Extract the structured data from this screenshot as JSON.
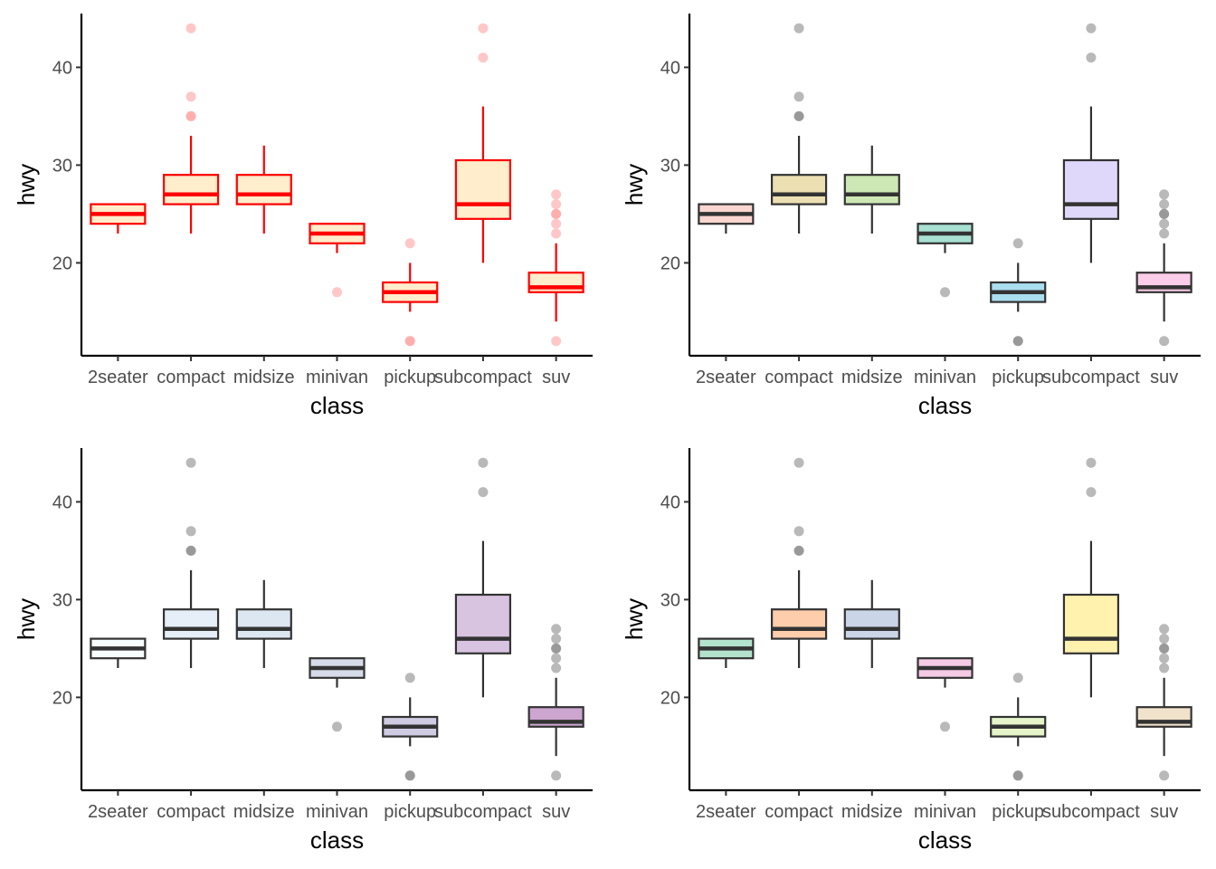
{
  "chart_data": [
    {
      "type": "boxplot",
      "xlabel": "class",
      "ylabel": "hwy",
      "ylim": [
        10.5,
        45.5
      ],
      "yticks": [
        20,
        30,
        40
      ],
      "grid": false,
      "style": {
        "stroke": "#ff0000",
        "fill": "#ffedcc",
        "outlier": "#ff9999"
      },
      "categories": [
        "2seater",
        "compact",
        "midsize",
        "minivan",
        "pickup",
        "subcompact",
        "suv"
      ],
      "boxes": [
        {
          "min": 23,
          "q1": 24,
          "median": 25,
          "q3": 26,
          "max": 26,
          "outliers": []
        },
        {
          "min": 23,
          "q1": 26,
          "median": 27,
          "q3": 29,
          "max": 33,
          "outliers": [
            35,
            35,
            37,
            44
          ]
        },
        {
          "min": 23,
          "q1": 26,
          "median": 27,
          "q3": 29,
          "max": 32,
          "outliers": []
        },
        {
          "min": 21,
          "q1": 22,
          "median": 23,
          "q3": 24,
          "max": 24,
          "outliers": [
            17
          ]
        },
        {
          "min": 15,
          "q1": 16,
          "median": 17,
          "q3": 18,
          "max": 20,
          "outliers": [
            12,
            12,
            22
          ]
        },
        {
          "min": 20,
          "q1": 24.5,
          "median": 26,
          "q3": 30.5,
          "max": 36,
          "outliers": [
            41,
            44
          ]
        },
        {
          "min": 14,
          "q1": 17,
          "median": 17.5,
          "q3": 19,
          "max": 22,
          "outliers": [
            12,
            23,
            24,
            25,
            25,
            26,
            27
          ]
        }
      ]
    },
    {
      "type": "boxplot",
      "xlabel": "class",
      "ylabel": "hwy",
      "ylim": [
        10.5,
        45.5
      ],
      "yticks": [
        20,
        30,
        40
      ],
      "grid": false,
      "style": {
        "stroke": "#333333",
        "outlier": "#808080"
      },
      "box_fills": [
        "#fbd5d0",
        "#ece0b2",
        "#cde8b4",
        "#a8e0d2",
        "#aadff0",
        "#e0d8fa",
        "#fccde8"
      ],
      "categories": [
        "2seater",
        "compact",
        "midsize",
        "minivan",
        "pickup",
        "subcompact",
        "suv"
      ],
      "boxes": [
        {
          "min": 23,
          "q1": 24,
          "median": 25,
          "q3": 26,
          "max": 26,
          "outliers": []
        },
        {
          "min": 23,
          "q1": 26,
          "median": 27,
          "q3": 29,
          "max": 33,
          "outliers": [
            35,
            35,
            37,
            44
          ]
        },
        {
          "min": 23,
          "q1": 26,
          "median": 27,
          "q3": 29,
          "max": 32,
          "outliers": []
        },
        {
          "min": 21,
          "q1": 22,
          "median": 23,
          "q3": 24,
          "max": 24,
          "outliers": [
            17
          ]
        },
        {
          "min": 15,
          "q1": 16,
          "median": 17,
          "q3": 18,
          "max": 20,
          "outliers": [
            12,
            12,
            22
          ]
        },
        {
          "min": 20,
          "q1": 24.5,
          "median": 26,
          "q3": 30.5,
          "max": 36,
          "outliers": [
            41,
            44
          ]
        },
        {
          "min": 14,
          "q1": 17,
          "median": 17.5,
          "q3": 19,
          "max": 22,
          "outliers": [
            12,
            23,
            24,
            25,
            25,
            26,
            27
          ]
        }
      ]
    },
    {
      "type": "boxplot",
      "xlabel": "class",
      "ylabel": "hwy",
      "ylim": [
        10.5,
        45.5
      ],
      "yticks": [
        20,
        30,
        40
      ],
      "grid": false,
      "style": {
        "stroke": "#333333",
        "outlier": "#808080"
      },
      "box_fills": [
        "#f7fcfd",
        "#e6eef7",
        "#dde7f2",
        "#d6dbe9",
        "#cfcbe2",
        "#d8c3e0",
        "#cca6cf"
      ],
      "categories": [
        "2seater",
        "compact",
        "midsize",
        "minivan",
        "pickup",
        "subcompact",
        "suv"
      ],
      "boxes": [
        {
          "min": 23,
          "q1": 24,
          "median": 25,
          "q3": 26,
          "max": 26,
          "outliers": []
        },
        {
          "min": 23,
          "q1": 26,
          "median": 27,
          "q3": 29,
          "max": 33,
          "outliers": [
            35,
            35,
            37,
            44
          ]
        },
        {
          "min": 23,
          "q1": 26,
          "median": 27,
          "q3": 29,
          "max": 32,
          "outliers": []
        },
        {
          "min": 21,
          "q1": 22,
          "median": 23,
          "q3": 24,
          "max": 24,
          "outliers": [
            17
          ]
        },
        {
          "min": 15,
          "q1": 16,
          "median": 17,
          "q3": 18,
          "max": 20,
          "outliers": [
            12,
            12,
            22
          ]
        },
        {
          "min": 20,
          "q1": 24.5,
          "median": 26,
          "q3": 30.5,
          "max": 36,
          "outliers": [
            41,
            44
          ]
        },
        {
          "min": 14,
          "q1": 17,
          "median": 17.5,
          "q3": 19,
          "max": 22,
          "outliers": [
            12,
            23,
            24,
            25,
            25,
            26,
            27
          ]
        }
      ]
    },
    {
      "type": "boxplot",
      "xlabel": "class",
      "ylabel": "hwy",
      "ylim": [
        10.5,
        45.5
      ],
      "yticks": [
        20,
        30,
        40
      ],
      "grid": false,
      "style": {
        "stroke": "#333333",
        "outlier": "#808080"
      },
      "box_fills": [
        "#b3e2cd",
        "#fdcdac",
        "#cbd5e8",
        "#f4cae4",
        "#e6f5c9",
        "#fff2ae",
        "#f1e2cc"
      ],
      "categories": [
        "2seater",
        "compact",
        "midsize",
        "minivan",
        "pickup",
        "subcompact",
        "suv"
      ],
      "boxes": [
        {
          "min": 23,
          "q1": 24,
          "median": 25,
          "q3": 26,
          "max": 26,
          "outliers": []
        },
        {
          "min": 23,
          "q1": 26,
          "median": 27,
          "q3": 29,
          "max": 33,
          "outliers": [
            35,
            35,
            37,
            44
          ]
        },
        {
          "min": 23,
          "q1": 26,
          "median": 27,
          "q3": 29,
          "max": 32,
          "outliers": []
        },
        {
          "min": 21,
          "q1": 22,
          "median": 23,
          "q3": 24,
          "max": 24,
          "outliers": [
            17
          ]
        },
        {
          "min": 15,
          "q1": 16,
          "median": 17,
          "q3": 18,
          "max": 20,
          "outliers": [
            12,
            12,
            22
          ]
        },
        {
          "min": 20,
          "q1": 24.5,
          "median": 26,
          "q3": 30.5,
          "max": 36,
          "outliers": [
            41,
            44
          ]
        },
        {
          "min": 14,
          "q1": 17,
          "median": 17.5,
          "q3": 19,
          "max": 22,
          "outliers": [
            12,
            23,
            24,
            25,
            25,
            26,
            27
          ]
        }
      ]
    }
  ]
}
